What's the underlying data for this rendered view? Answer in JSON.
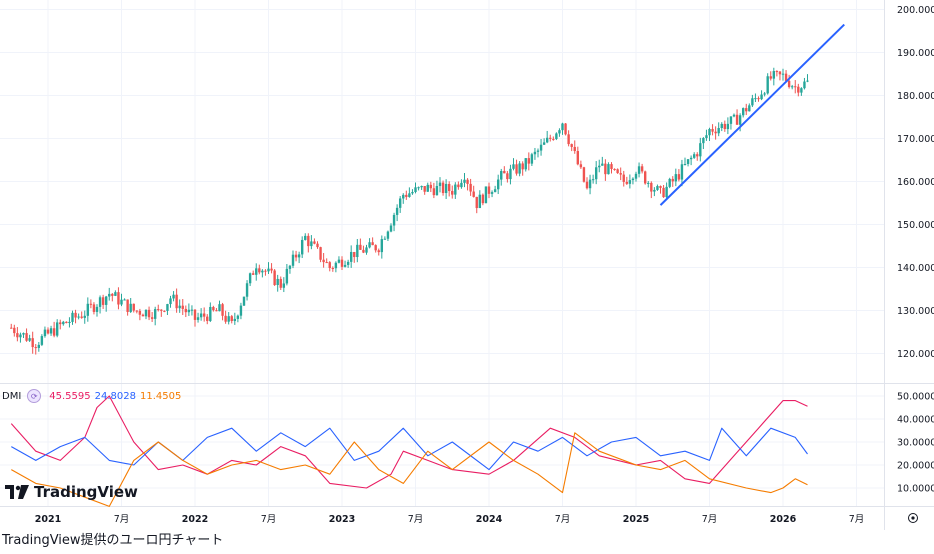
{
  "chart_data": [
    {
      "type": "candlestick",
      "title": "",
      "xlabel": "",
      "ylabel": "",
      "ylim": [
        113,
        203
      ],
      "y_ticks": [
        "200.000",
        "190.000",
        "180.000",
        "170.000",
        "160.000",
        "150.000",
        "140.000",
        "130.000",
        "120.000"
      ],
      "x_ticks": [
        "2021",
        "7月",
        "2022",
        "7月",
        "2023",
        "7月",
        "2024",
        "7月",
        "2025",
        "7月",
        "2026",
        "7月"
      ],
      "grid": true,
      "colors": {
        "up": "#26a69a",
        "down": "#ef5350",
        "trendline": "#2962ff",
        "grid": "#f0f3fa"
      },
      "price_path": [
        [
          "2020-10",
          126.0
        ],
        [
          "2020-12",
          122.5
        ],
        [
          "2021-02",
          126.5
        ],
        [
          "2021-04",
          129.5
        ],
        [
          "2021-06",
          134.0
        ],
        [
          "2021-08",
          130.0
        ],
        [
          "2021-10",
          129.5
        ],
        [
          "2021-11",
          133.0
        ],
        [
          "2022-01",
          128.0
        ],
        [
          "2022-03",
          130.0
        ],
        [
          "2022-04",
          126.5
        ],
        [
          "2022-06",
          141.0
        ],
        [
          "2022-08",
          136.0
        ],
        [
          "2022-10",
          147.0
        ],
        [
          "2022-12",
          140.0
        ],
        [
          "2023-02",
          143.5
        ],
        [
          "2023-04",
          145.0
        ],
        [
          "2023-06",
          157.0
        ],
        [
          "2023-08",
          158.5
        ],
        [
          "2023-10",
          158.0
        ],
        [
          "2023-11",
          162.0
        ],
        [
          "2023-12",
          155.0
        ],
        [
          "2024-02",
          161.0
        ],
        [
          "2024-04",
          164.0
        ],
        [
          "2024-06",
          170.0
        ],
        [
          "2024-07",
          174.0
        ],
        [
          "2024-09",
          158.0
        ],
        [
          "2024-10",
          164.0
        ],
        [
          "2024-12",
          160.0
        ],
        [
          "2025-01",
          163.0
        ],
        [
          "2025-03",
          157.0
        ],
        [
          "2025-04",
          160.0
        ],
        [
          "2025-06",
          167.0
        ],
        [
          "2025-07",
          172.0
        ],
        [
          "2025-09",
          174.0
        ],
        [
          "2025-11",
          180.0
        ],
        [
          "2025-12",
          184.0
        ],
        [
          "2026-01",
          184.5
        ],
        [
          "2026-02",
          182.0
        ],
        [
          "2026-03",
          183.0
        ]
      ],
      "trendline": [
        [
          "2025-03",
          154.5
        ],
        [
          "2026-06",
          196.5
        ]
      ]
    },
    {
      "type": "line",
      "title": "DMI",
      "ylim": [
        0,
        55
      ],
      "y_ticks": [
        "50.0000",
        "40.0000",
        "30.0000",
        "20.0000",
        "10.0000"
      ],
      "series": [
        {
          "name": "",
          "color": "#e91e63",
          "last": "45.5595",
          "points": [
            [
              "2020-10",
              38
            ],
            [
              "2020-12",
              26
            ],
            [
              "2021-02",
              22
            ],
            [
              "2021-04",
              32
            ],
            [
              "2021-05",
              45
            ],
            [
              "2021-06",
              50
            ],
            [
              "2021-08",
              30
            ],
            [
              "2021-10",
              18
            ],
            [
              "2021-12",
              20
            ],
            [
              "2022-02",
              16
            ],
            [
              "2022-04",
              22
            ],
            [
              "2022-06",
              20
            ],
            [
              "2022-08",
              28
            ],
            [
              "2022-10",
              24
            ],
            [
              "2022-12",
              12
            ],
            [
              "2023-03",
              10
            ],
            [
              "2023-05",
              16
            ],
            [
              "2023-06",
              26
            ],
            [
              "2023-08",
              22
            ],
            [
              "2023-10",
              18
            ],
            [
              "2024-01",
              16
            ],
            [
              "2024-03",
              22
            ],
            [
              "2024-06",
              36
            ],
            [
              "2024-08",
              32
            ],
            [
              "2024-10",
              24
            ],
            [
              "2025-01",
              20
            ],
            [
              "2025-03",
              22
            ],
            [
              "2025-05",
              14
            ],
            [
              "2025-07",
              12
            ],
            [
              "2025-09",
              24
            ],
            [
              "2025-11",
              36
            ],
            [
              "2026-01",
              48
            ],
            [
              "2026-02",
              48
            ],
            [
              "2026-03",
              45.5595
            ]
          ]
        },
        {
          "name": "",
          "color": "#2962ff",
          "last": "24.8028",
          "points": [
            [
              "2020-10",
              28
            ],
            [
              "2020-12",
              22
            ],
            [
              "2021-02",
              28
            ],
            [
              "2021-04",
              32
            ],
            [
              "2021-06",
              22
            ],
            [
              "2021-08",
              20
            ],
            [
              "2021-10",
              30
            ],
            [
              "2021-12",
              22
            ],
            [
              "2022-02",
              32
            ],
            [
              "2022-04",
              36
            ],
            [
              "2022-06",
              26
            ],
            [
              "2022-08",
              34
            ],
            [
              "2022-10",
              28
            ],
            [
              "2022-12",
              36
            ],
            [
              "2023-02",
              22
            ],
            [
              "2023-04",
              26
            ],
            [
              "2023-06",
              36
            ],
            [
              "2023-08",
              24
            ],
            [
              "2023-10",
              30
            ],
            [
              "2024-01",
              18
            ],
            [
              "2024-03",
              30
            ],
            [
              "2024-05",
              26
            ],
            [
              "2024-07",
              32
            ],
            [
              "2024-09",
              24
            ],
            [
              "2024-11",
              30
            ],
            [
              "2025-01",
              32
            ],
            [
              "2025-03",
              24
            ],
            [
              "2025-05",
              26
            ],
            [
              "2025-07",
              22
            ],
            [
              "2025-08",
              36
            ],
            [
              "2025-10",
              24
            ],
            [
              "2025-12",
              36
            ],
            [
              "2026-02",
              32
            ],
            [
              "2026-03",
              24.8028
            ]
          ]
        },
        {
          "name": "",
          "color": "#f57c00",
          "last": "11.4505",
          "points": [
            [
              "2020-10",
              18
            ],
            [
              "2020-12",
              12
            ],
            [
              "2021-02",
              10
            ],
            [
              "2021-04",
              6
            ],
            [
              "2021-06",
              2
            ],
            [
              "2021-08",
              22
            ],
            [
              "2021-10",
              30
            ],
            [
              "2021-12",
              22
            ],
            [
              "2022-02",
              16
            ],
            [
              "2022-04",
              20
            ],
            [
              "2022-06",
              22
            ],
            [
              "2022-08",
              18
            ],
            [
              "2022-10",
              20
            ],
            [
              "2022-12",
              16
            ],
            [
              "2023-02",
              30
            ],
            [
              "2023-04",
              18
            ],
            [
              "2023-06",
              12
            ],
            [
              "2023-08",
              26
            ],
            [
              "2023-10",
              18
            ],
            [
              "2024-01",
              30
            ],
            [
              "2024-03",
              22
            ],
            [
              "2024-05",
              16
            ],
            [
              "2024-07",
              8
            ],
            [
              "2024-08",
              34
            ],
            [
              "2024-10",
              26
            ],
            [
              "2025-01",
              20
            ],
            [
              "2025-03",
              18
            ],
            [
              "2025-05",
              22
            ],
            [
              "2025-07",
              14
            ],
            [
              "2025-10",
              10
            ],
            [
              "2025-12",
              8
            ],
            [
              "2026-01",
              10
            ],
            [
              "2026-02",
              14
            ],
            [
              "2026-03",
              11.4505
            ]
          ]
        }
      ]
    }
  ],
  "legend": {
    "label": "DMI",
    "v1": "45.5595",
    "v2": "24.8028",
    "v3": "11.4505"
  },
  "brand": "TradingView",
  "caption": "TradingView提供のユーロ円チャート"
}
